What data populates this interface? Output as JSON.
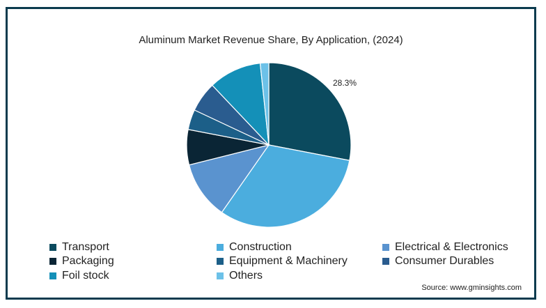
{
  "chart_data": {
    "type": "pie",
    "title": "Aluminum Market Revenue Share, By Application, (2024)",
    "categories": [
      "Transport",
      "Construction",
      "Electrical & Electronics",
      "Packaging",
      "Equipment & Machinery",
      "Consumer Durables",
      "Foil stock",
      "Others"
    ],
    "values": [
      28.3,
      32.0,
      11.5,
      7.0,
      4.0,
      6.0,
      10.5,
      1.7
    ],
    "colors": [
      "#0b4a5e",
      "#4badde",
      "#5a93cf",
      "#0a2535",
      "#1c5f88",
      "#2a5c8f",
      "#1490b8",
      "#6cc1e8"
    ],
    "data_labels": [
      {
        "category": "Transport",
        "text": "28.3%"
      }
    ],
    "legend_position": "bottom"
  },
  "legend": {
    "items": [
      "Transport",
      "Construction",
      "Electrical & Electronics",
      "Packaging",
      "Equipment & Machinery",
      "Consumer Durables",
      "Foil stock",
      "Others"
    ]
  },
  "source": "Source: www.gminsights.com"
}
